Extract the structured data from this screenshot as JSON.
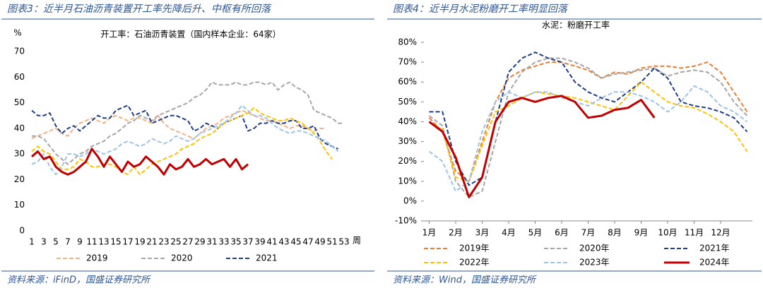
{
  "chart_data": [
    {
      "type": "line",
      "title": "图表3：近半月石油沥青装置开工率先降后升、中枢有所回落",
      "annotation": "开工率：石油沥青装置（国内样本企业：64家）",
      "ylabel": "%",
      "xlabel": "周",
      "source": "资料来源：iFinD，国盛证券研究所",
      "xlim": [
        1,
        53
      ],
      "xticks": [
        1,
        3,
        5,
        7,
        9,
        11,
        13,
        15,
        17,
        19,
        21,
        23,
        25,
        27,
        29,
        31,
        33,
        35,
        37,
        39,
        41,
        43,
        45,
        47,
        49,
        51,
        53
      ],
      "ylim": [
        0,
        70
      ],
      "yticks": [
        0,
        10,
        20,
        30,
        40,
        50,
        60,
        70
      ],
      "x": [
        1,
        2,
        3,
        4,
        5,
        6,
        7,
        8,
        9,
        10,
        11,
        12,
        13,
        14,
        15,
        16,
        17,
        18,
        19,
        20,
        21,
        22,
        23,
        24,
        25,
        26,
        27,
        28,
        29,
        30,
        31,
        32,
        33,
        34,
        35,
        36,
        37,
        38,
        39,
        40,
        41,
        42,
        43,
        44,
        45,
        46,
        47,
        48,
        49,
        50,
        51,
        52,
        53
      ],
      "series": [
        {
          "name": "2019",
          "color": "#f4b183",
          "values": [
            36,
            37,
            38,
            39,
            40,
            38,
            37,
            40,
            42,
            43,
            44,
            43,
            42,
            44,
            45,
            44,
            43,
            44,
            44,
            43,
            42,
            45,
            42,
            40,
            39,
            38,
            37,
            36,
            38,
            40,
            41,
            42,
            44,
            45,
            46,
            47,
            46,
            45,
            44,
            43,
            43,
            42,
            41,
            40,
            41,
            41,
            40,
            39,
            40,
            40,
            null,
            null,
            null
          ]
        },
        {
          "name": "2020",
          "color": "#a6a6a6",
          "values": [
            37,
            37,
            36,
            33,
            30,
            28,
            26,
            28,
            30,
            31,
            33,
            34,
            35,
            37,
            38,
            40,
            42,
            43,
            45,
            44,
            43,
            45,
            46,
            47,
            48,
            49,
            50,
            52,
            53,
            55,
            58,
            57,
            57,
            57,
            58,
            57,
            57,
            58,
            58,
            57,
            58,
            55,
            57,
            58,
            56,
            55,
            53,
            47,
            46,
            45,
            44,
            42,
            42
          ]
        },
        {
          "name": "2021",
          "color": "#1f3c88",
          "values": [
            47,
            45,
            45,
            46,
            41,
            38,
            40,
            41,
            39,
            41,
            43,
            45,
            44,
            44,
            47,
            48,
            49,
            45,
            46,
            47,
            42,
            43,
            44,
            45,
            45,
            44,
            43,
            39,
            40,
            42,
            41,
            40,
            42,
            43,
            44,
            45,
            39,
            40,
            42,
            42,
            43,
            42,
            42,
            43,
            43,
            40,
            40,
            41,
            36,
            34,
            33,
            32,
            null
          ]
        },
        {
          "color": "#ffc000",
          "values": [
            31,
            33,
            31,
            30,
            27,
            24,
            24,
            25,
            28,
            27,
            25,
            25,
            26,
            26,
            25,
            23,
            22,
            25,
            22,
            24,
            26,
            27,
            28,
            29,
            30,
            32,
            33,
            34,
            36,
            37,
            38,
            40,
            42,
            43,
            44,
            45,
            46,
            48,
            46,
            45,
            44,
            43,
            43,
            44,
            43,
            42,
            40,
            38,
            35,
            31,
            28,
            null,
            null
          ]
        },
        {
          "color": "#9dc3e6",
          "values": [
            26,
            27,
            30,
            25,
            22,
            25,
            30,
            30,
            29,
            30,
            32,
            31,
            30,
            31,
            32,
            34,
            35,
            34,
            33,
            34,
            36,
            35,
            34,
            35,
            37,
            36,
            35,
            36,
            38,
            39,
            40,
            41,
            42,
            44,
            46,
            49,
            47,
            45,
            45,
            44,
            42,
            40,
            39,
            38,
            39,
            39,
            38,
            37,
            36,
            35,
            33,
            31,
            null
          ]
        },
        {
          "color": "#c00000",
          "solid": true,
          "values": [
            29,
            31,
            28,
            29,
            25,
            23,
            22,
            23,
            25,
            27,
            32,
            29,
            25,
            29,
            26,
            23,
            27,
            25,
            26,
            29,
            27,
            25,
            22,
            26,
            24,
            25,
            28,
            25,
            26,
            28,
            26,
            27,
            28,
            25,
            28,
            24,
            26,
            null,
            null,
            null,
            null,
            null,
            null,
            null,
            null,
            null,
            null,
            null,
            null,
            null,
            null,
            null,
            null
          ]
        }
      ]
    },
    {
      "type": "line",
      "title": "图表4：近半月水泥粉磨开工率明显回落",
      "annotation": "水泥：粉磨开工率",
      "source": "资料来源：Wind，国盛证券研究所",
      "xlim": [
        0.8,
        13.2
      ],
      "xticks": [
        {
          "value": 1,
          "label": "1月"
        },
        {
          "value": 2,
          "label": "2月"
        },
        {
          "value": 3,
          "label": "3月"
        },
        {
          "value": 4,
          "label": "4月"
        },
        {
          "value": 5,
          "label": "5月"
        },
        {
          "value": 6,
          "label": "6月"
        },
        {
          "value": 7,
          "label": "7月"
        },
        {
          "value": 8,
          "label": "8月"
        },
        {
          "value": 9,
          "label": "9月"
        },
        {
          "value": 10,
          "label": "10月"
        },
        {
          "value": 11,
          "label": "11月"
        },
        {
          "value": 12,
          "label": "12月"
        }
      ],
      "ylim": [
        -10,
        80
      ],
      "yticks": [
        {
          "value": -10,
          "label": "-10%"
        },
        {
          "value": 0,
          "label": "0%"
        },
        {
          "value": 10,
          "label": "10%"
        },
        {
          "value": 20,
          "label": "20%"
        },
        {
          "value": 30,
          "label": "30%"
        },
        {
          "value": 40,
          "label": "40%"
        },
        {
          "value": 50,
          "label": "50%"
        },
        {
          "value": 60,
          "label": "60%"
        },
        {
          "value": 70,
          "label": "70%"
        },
        {
          "value": 80,
          "label": "80%"
        }
      ],
      "x": [
        1,
        1.5,
        2,
        2.5,
        3,
        3.5,
        4,
        4.5,
        5,
        5.5,
        6,
        6.5,
        7,
        7.5,
        8,
        8.5,
        9,
        9.5,
        10,
        10.5,
        11,
        11.5,
        12,
        12.5,
        13
      ],
      "series": [
        {
          "name": "2019年",
          "color": "#ed7d31",
          "values": [
            42,
            35,
            15,
            10,
            30,
            50,
            62,
            66,
            68,
            70,
            70,
            68,
            66,
            62,
            65,
            64,
            67,
            68,
            68,
            67,
            68,
            70,
            65,
            55,
            45
          ]
        },
        {
          "name": "2020年",
          "color": "#a5a5a5",
          "values": [
            43,
            38,
            10,
            2,
            5,
            30,
            55,
            65,
            70,
            72,
            72,
            70,
            67,
            62,
            64,
            65,
            66,
            67,
            63,
            65,
            66,
            65,
            60,
            50,
            43
          ]
        },
        {
          "name": "2021年",
          "color": "#1f3c88",
          "values": [
            45,
            45,
            20,
            8,
            12,
            40,
            65,
            72,
            75,
            72,
            70,
            60,
            55,
            52,
            50,
            55,
            60,
            67,
            62,
            50,
            48,
            47,
            45,
            42,
            35
          ]
        },
        {
          "name": "2022年",
          "color": "#ffc000",
          "values": [
            40,
            36,
            12,
            10,
            28,
            45,
            48,
            52,
            55,
            54,
            53,
            52,
            50,
            48,
            46,
            53,
            60,
            55,
            50,
            48,
            47,
            44,
            40,
            35,
            25
          ]
        },
        {
          "name": "2023年",
          "color": "#9dc3e6",
          "values": [
            25,
            20,
            5,
            10,
            35,
            50,
            55,
            52,
            55,
            55,
            52,
            50,
            48,
            52,
            55,
            55,
            53,
            50,
            45,
            50,
            58,
            55,
            48,
            45,
            40
          ]
        },
        {
          "name": "2024年",
          "color": "#c00000",
          "solid": true,
          "values": [
            40,
            35,
            22,
            2,
            12,
            40,
            50,
            52,
            50,
            52,
            53,
            50,
            42,
            43,
            46,
            47,
            51,
            42,
            null,
            null,
            null,
            null,
            null,
            null,
            null
          ]
        }
      ]
    }
  ]
}
